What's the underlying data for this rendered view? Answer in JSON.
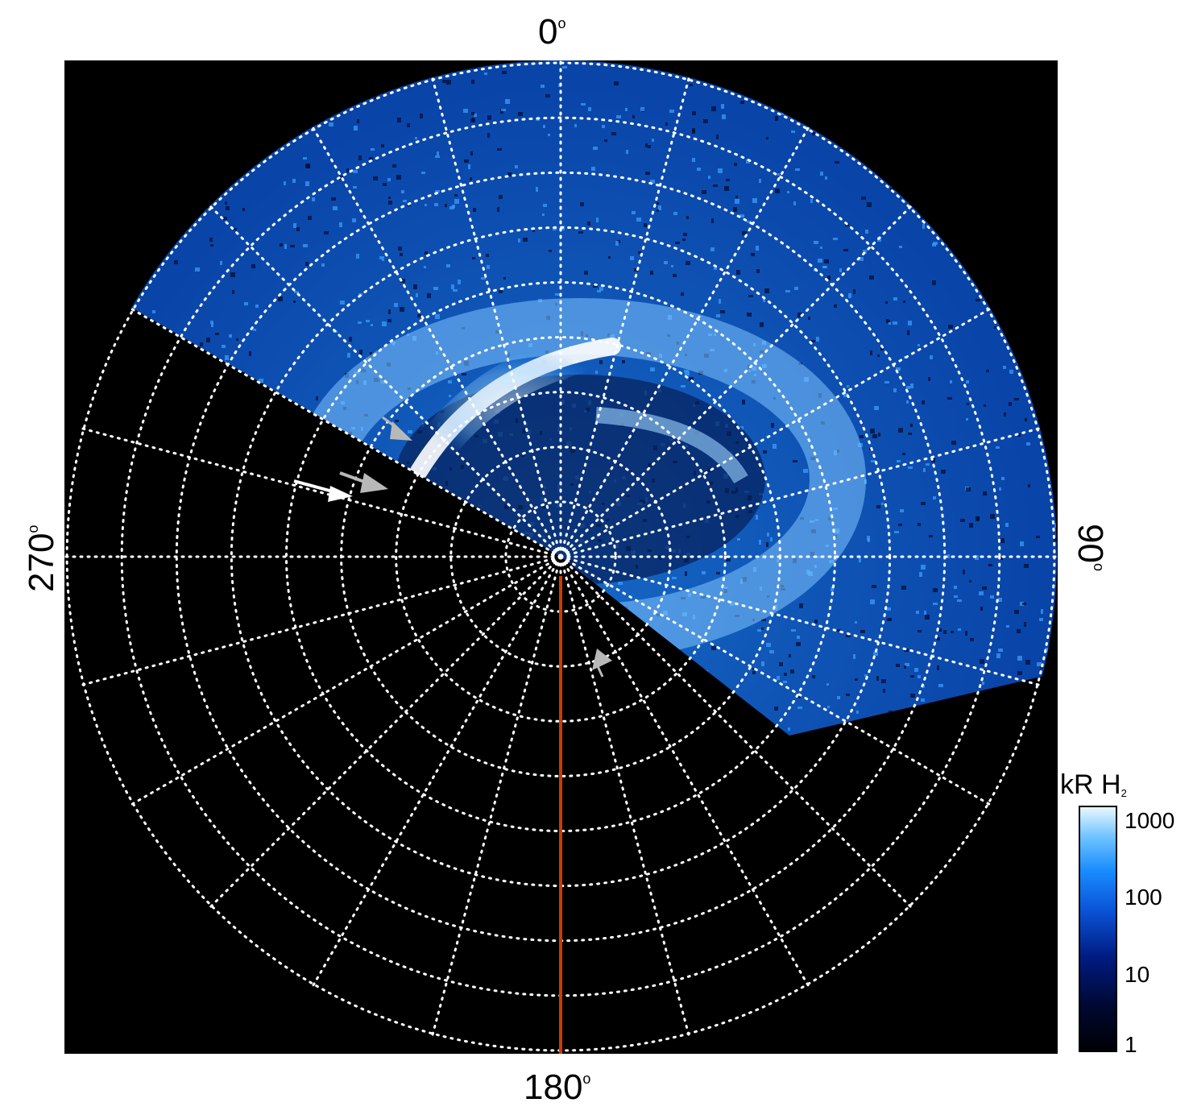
{
  "image": {
    "subject": "polar projection auroral emission map",
    "palette": {
      "background": "#000000",
      "emission_low": "#001a80",
      "emission_mid": "#1a8cff",
      "emission_high": "#ffffff",
      "meridian_line": "#d03a00",
      "grid": "#ffffff",
      "arrow_white": "#ffffff",
      "arrow_gray": "#b0b0b0"
    }
  },
  "labels": {
    "top": "0",
    "right": "90",
    "bottom": "180",
    "left": "270",
    "degree": "o"
  },
  "colorbar": {
    "title": "kR H",
    "title_subscript": "2",
    "ticks": [
      "1000",
      "100",
      "10",
      "1"
    ]
  }
}
